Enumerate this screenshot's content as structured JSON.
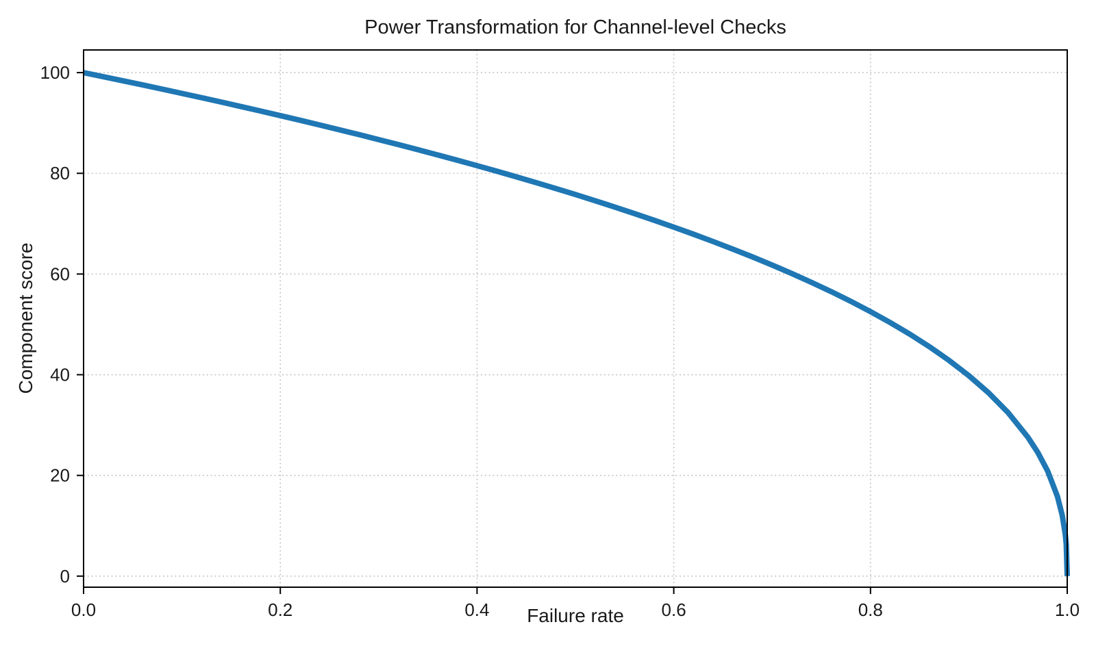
{
  "figure": {
    "background": "#ffffff"
  },
  "chart_data": {
    "type": "line",
    "title": "Power Transformation for Channel-level Checks",
    "xlabel": "Failure rate",
    "ylabel": "Component score",
    "xlim": [
      0,
      1
    ],
    "ylim": [
      -2.2,
      104.5
    ],
    "xticks": [
      0,
      0.2,
      0.4,
      0.6,
      0.8,
      1
    ],
    "xtick_labels": [
      "0.0",
      "0.2",
      "0.4",
      "0.6",
      "0.8",
      "1.0"
    ],
    "yticks": [
      0,
      20,
      40,
      60,
      80,
      100
    ],
    "ytick_labels": [
      "0",
      "20",
      "40",
      "60",
      "80",
      "100"
    ],
    "grid": true,
    "grid_style": "dotted",
    "legend": false,
    "line_color": "#1f77b4",
    "line_width": 8,
    "grid_color": "#c4c4c4",
    "spine_color": "#000000",
    "text_color": "#1a1a1a",
    "series": [
      {
        "name": "Component score vs failure rate",
        "x": [
          0,
          0.02,
          0.04,
          0.06,
          0.08,
          0.1,
          0.12,
          0.14,
          0.16,
          0.18,
          0.2,
          0.22,
          0.24,
          0.26,
          0.28,
          0.3,
          0.32,
          0.34,
          0.36,
          0.38,
          0.4,
          0.42,
          0.44,
          0.46,
          0.48,
          0.5,
          0.52,
          0.54,
          0.56,
          0.58,
          0.6,
          0.62,
          0.64,
          0.66,
          0.68,
          0.7,
          0.72,
          0.74,
          0.76,
          0.78,
          0.8,
          0.82,
          0.84,
          0.86,
          0.88,
          0.9,
          0.92,
          0.94,
          0.96,
          0.97,
          0.98,
          0.99,
          0.995,
          0.998,
          0.999,
          1
        ],
        "y": [
          100,
          99.19,
          98.38,
          97.56,
          96.72,
          95.87,
          95.02,
          94.15,
          93.26,
          92.37,
          91.46,
          90.54,
          89.6,
          88.65,
          87.69,
          86.7,
          85.7,
          84.69,
          83.65,
          82.6,
          81.52,
          80.42,
          79.3,
          78.16,
          76.98,
          75.79,
          74.56,
          73.3,
          72.01,
          70.68,
          69.31,
          67.91,
          66.45,
          64.95,
          63.4,
          61.78,
          60.1,
          58.34,
          56.51,
          54.57,
          52.53,
          50.36,
          48.05,
          45.55,
          42.82,
          39.81,
          36.41,
          32.45,
          27.59,
          24.59,
          20.91,
          15.85,
          12.01,
          8.33,
          6.31,
          0
        ]
      }
    ]
  }
}
